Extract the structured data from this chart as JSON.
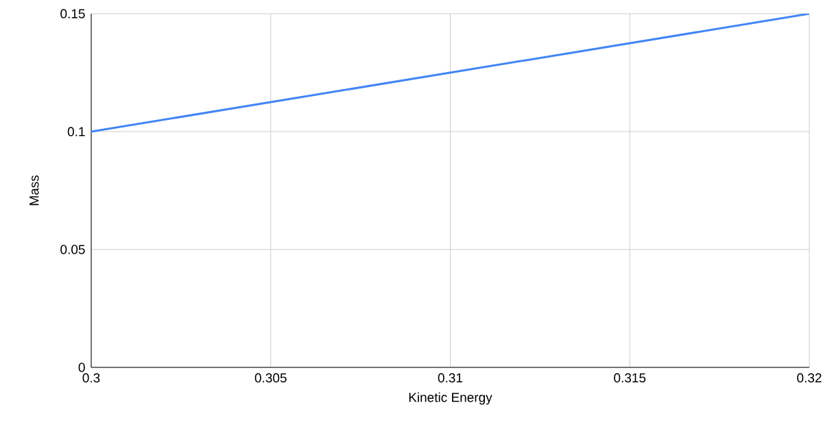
{
  "chart_data": {
    "type": "line",
    "xlabel": "Kinetic Energy",
    "ylabel": "Mass",
    "x": [
      0.3,
      0.32
    ],
    "values": [
      0.1,
      0.15
    ],
    "color": "#4285f4",
    "xlim": [
      0.3,
      0.32
    ],
    "ylim": [
      0,
      0.15
    ],
    "xticks": [
      0.3,
      0.305,
      0.31,
      0.315,
      0.32
    ],
    "yticks": [
      0,
      0.05,
      0.1,
      0.15
    ],
    "grid": true
  }
}
